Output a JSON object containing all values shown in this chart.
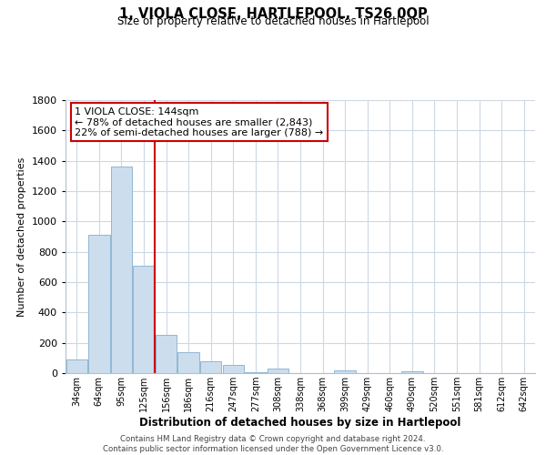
{
  "title": "1, VIOLA CLOSE, HARTLEPOOL, TS26 0QP",
  "subtitle": "Size of property relative to detached houses in Hartlepool",
  "xlabel": "Distribution of detached houses by size in Hartlepool",
  "ylabel": "Number of detached properties",
  "categories": [
    "34sqm",
    "64sqm",
    "95sqm",
    "125sqm",
    "156sqm",
    "186sqm",
    "216sqm",
    "247sqm",
    "277sqm",
    "308sqm",
    "338sqm",
    "368sqm",
    "399sqm",
    "429sqm",
    "460sqm",
    "490sqm",
    "520sqm",
    "551sqm",
    "581sqm",
    "612sqm",
    "642sqm"
  ],
  "values": [
    90,
    910,
    1360,
    710,
    250,
    140,
    80,
    55,
    5,
    30,
    3,
    2,
    20,
    2,
    1,
    15,
    1,
    1,
    1,
    1,
    1
  ],
  "bar_color": "#ccdded",
  "bar_edge_color": "#90b8d4",
  "vline_color": "#cc0000",
  "vline_x_idx": 3.5,
  "annotation_title": "1 VIOLA CLOSE: 144sqm",
  "annotation_line1": "← 78% of detached houses are smaller (2,843)",
  "annotation_line2": "22% of semi-detached houses are larger (788) →",
  "annotation_box_color": "white",
  "annotation_box_edge": "#cc0000",
  "ylim": [
    0,
    1800
  ],
  "yticks": [
    0,
    200,
    400,
    600,
    800,
    1000,
    1200,
    1400,
    1600,
    1800
  ],
  "footer_line1": "Contains HM Land Registry data © Crown copyright and database right 2024.",
  "footer_line2": "Contains public sector information licensed under the Open Government Licence v3.0.",
  "bg_color": "#ffffff",
  "grid_color": "#ccd8e4"
}
